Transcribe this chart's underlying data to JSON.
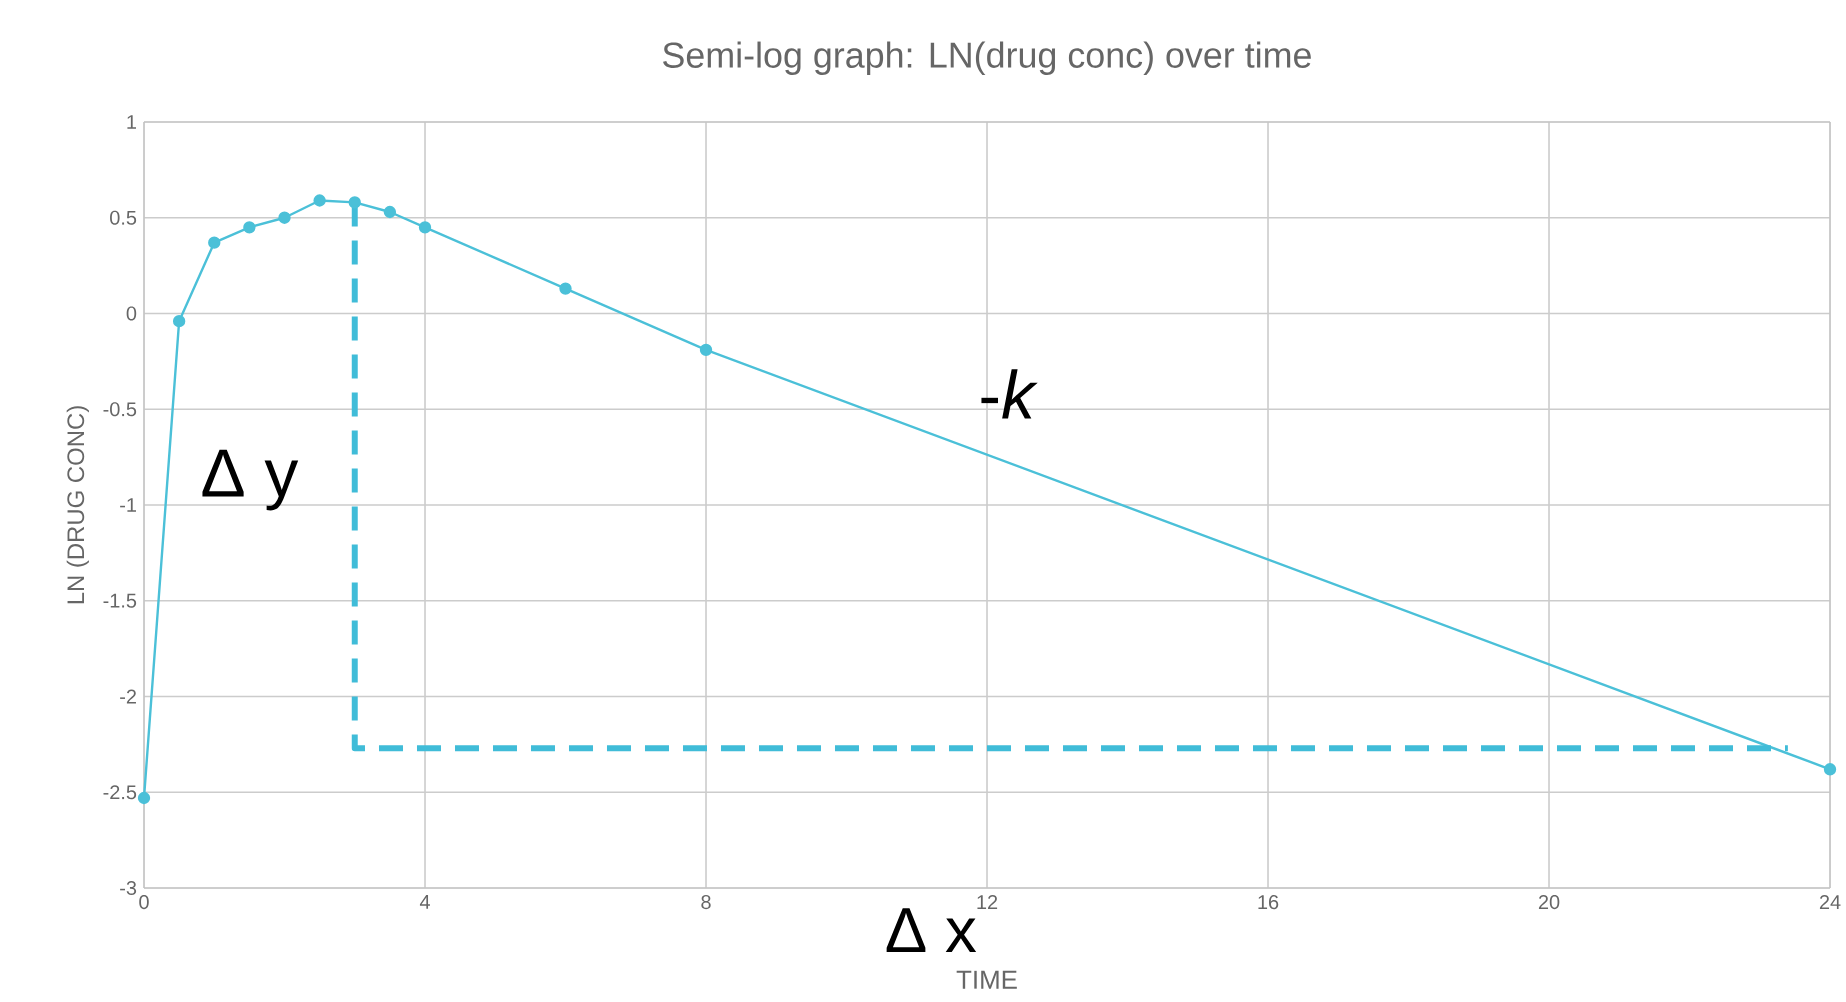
{
  "chart_data": {
    "type": "line",
    "title": "Semi-log graph: LN(drug conc) over time",
    "xlabel": "TIME",
    "ylabel": "LN (DRUG CONC)",
    "series": [
      {
        "color": "#4bc0d8",
        "x": [
          0,
          0.5,
          1,
          1.5,
          2,
          2.5,
          3,
          3.5,
          4,
          6,
          8,
          24
        ],
        "values": [
          -2.53,
          -0.04,
          0.37,
          0.45,
          0.5,
          0.59,
          0.58,
          0.53,
          0.45,
          0.13,
          -0.19,
          -2.38
        ]
      },
      {
        "color": "#40bcd8",
        "marker": "none",
        "line_style": "dashed",
        "x": [
          3,
          3,
          23.4
        ],
        "values": [
          0.58,
          -2.27,
          -2.27
        ]
      }
    ],
    "annotations": [
      "Δ y",
      "-*k*",
      "Δ x"
    ],
    "xlim": [
      0,
      24
    ],
    "xticks": [
      0,
      4,
      8,
      12,
      16,
      20,
      24
    ],
    "ylim": [
      -3,
      1
    ],
    "yticks": [
      -3,
      -2.5,
      -2,
      -1.5,
      -1,
      -0.5,
      0,
      0.5,
      1
    ],
    "grid": true,
    "marker": "circle",
    "line_style": "solid"
  }
}
